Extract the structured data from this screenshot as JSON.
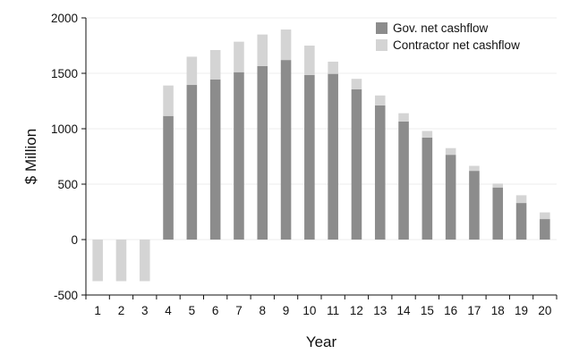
{
  "chart_data": {
    "type": "bar",
    "stacked": true,
    "xlabel": "Year",
    "ylabel": "$ Million",
    "ylim": [
      -500,
      2000
    ],
    "yticks": [
      -500,
      0,
      500,
      1000,
      1500,
      2000
    ],
    "categories": [
      "1",
      "2",
      "3",
      "4",
      "5",
      "6",
      "7",
      "8",
      "9",
      "10",
      "11",
      "12",
      "13",
      "14",
      "15",
      "16",
      "17",
      "18",
      "19",
      "20"
    ],
    "series": [
      {
        "name": "Gov. net cashflow",
        "color": "#8c8c8c",
        "values": [
          0,
          0,
          0,
          1115,
          1395,
          1445,
          1510,
          1565,
          1620,
          1485,
          1495,
          1355,
          1210,
          1065,
          920,
          765,
          620,
          470,
          330,
          185
        ]
      },
      {
        "name": "Contractor net cashflow",
        "color": "#d4d4d4",
        "values": [
          -375,
          -375,
          -375,
          275,
          255,
          265,
          275,
          285,
          275,
          265,
          110,
          95,
          90,
          75,
          60,
          60,
          45,
          35,
          70,
          60
        ]
      }
    ],
    "grid": "horizontal",
    "legend_position": "top-right"
  }
}
